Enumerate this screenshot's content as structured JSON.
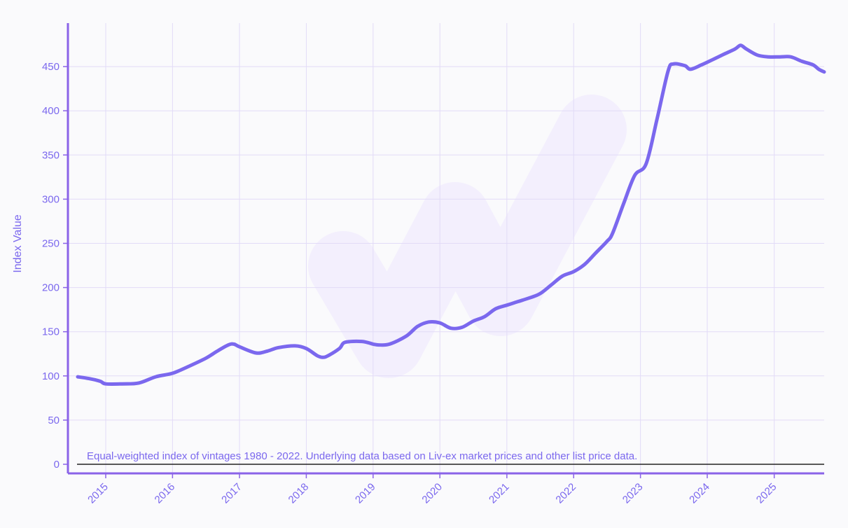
{
  "chart_data": {
    "type": "line",
    "ylabel": "Index Value",
    "xlabel": "",
    "ylim": [
      0,
      495
    ],
    "x_range": [
      "2014-08-01",
      "2025-10-01"
    ],
    "y_ticks": [
      0,
      50,
      100,
      150,
      200,
      250,
      300,
      350,
      400,
      450
    ],
    "x_ticks": [
      "2015",
      "2016",
      "2017",
      "2018",
      "2019",
      "2020",
      "2021",
      "2022",
      "2023",
      "2024",
      "2025"
    ],
    "annotation": "Equal-weighted index of vintages 1980 - 2022. Underlying data based on Liv-ex market prices and other list price data.",
    "grid": true,
    "colors": {
      "line": "#7b68ee",
      "axis": "#8a63e8",
      "grid": "#e2dbf7",
      "text": "#7b68ee"
    },
    "series": [
      {
        "x": [
          "2014-08-01",
          "2014-10-01",
          "2014-12-01",
          "2015-01-01",
          "2015-04-01",
          "2015-07-01",
          "2015-10-01",
          "2016-01-01",
          "2016-04-01",
          "2016-07-01",
          "2016-09-01",
          "2016-11-01",
          "2016-12-01",
          "2017-01-01",
          "2017-04-01",
          "2017-06-01",
          "2017-08-01",
          "2017-11-01",
          "2018-01-01",
          "2018-03-01",
          "2018-04-01",
          "2018-05-01",
          "2018-07-01",
          "2018-08-01",
          "2018-11-01",
          "2019-01-01",
          "2019-02-01",
          "2019-04-01",
          "2019-07-01",
          "2019-09-01",
          "2019-11-01",
          "2020-01-01",
          "2020-03-01",
          "2020-05-01",
          "2020-07-01",
          "2020-09-01",
          "2020-11-01",
          "2021-01-01",
          "2021-03-01",
          "2021-05-01",
          "2021-07-01",
          "2021-09-01",
          "2021-11-01",
          "2022-01-01",
          "2022-03-01",
          "2022-05-01",
          "2022-07-01",
          "2022-08-01",
          "2022-10-01",
          "2022-12-01",
          "2023-02-01",
          "2023-04-01",
          "2023-06-01",
          "2023-07-01",
          "2023-09-01",
          "2023-10-01",
          "2023-12-01",
          "2024-02-01",
          "2024-04-01",
          "2024-06-01",
          "2024-07-01",
          "2024-08-01",
          "2024-10-01",
          "2024-12-01",
          "2025-02-01",
          "2025-04-01",
          "2025-06-01",
          "2025-08-01",
          "2025-09-01",
          "2025-10-01"
        ],
        "values": [
          99,
          97,
          94,
          91,
          91,
          92,
          99,
          103,
          111,
          120,
          128,
          135,
          136,
          133,
          126,
          128,
          132,
          134,
          131,
          123,
          121,
          123,
          131,
          138,
          139,
          136,
          135,
          136,
          145,
          156,
          161,
          160,
          154,
          155,
          162,
          167,
          176,
          180,
          184,
          188,
          193,
          203,
          213,
          218,
          226,
          239,
          252,
          261,
          295,
          327,
          340,
          390,
          445,
          453,
          451,
          447,
          452,
          458,
          464,
          470,
          474,
          470,
          463,
          461,
          461,
          461,
          456,
          452,
          447,
          444
        ]
      }
    ]
  }
}
